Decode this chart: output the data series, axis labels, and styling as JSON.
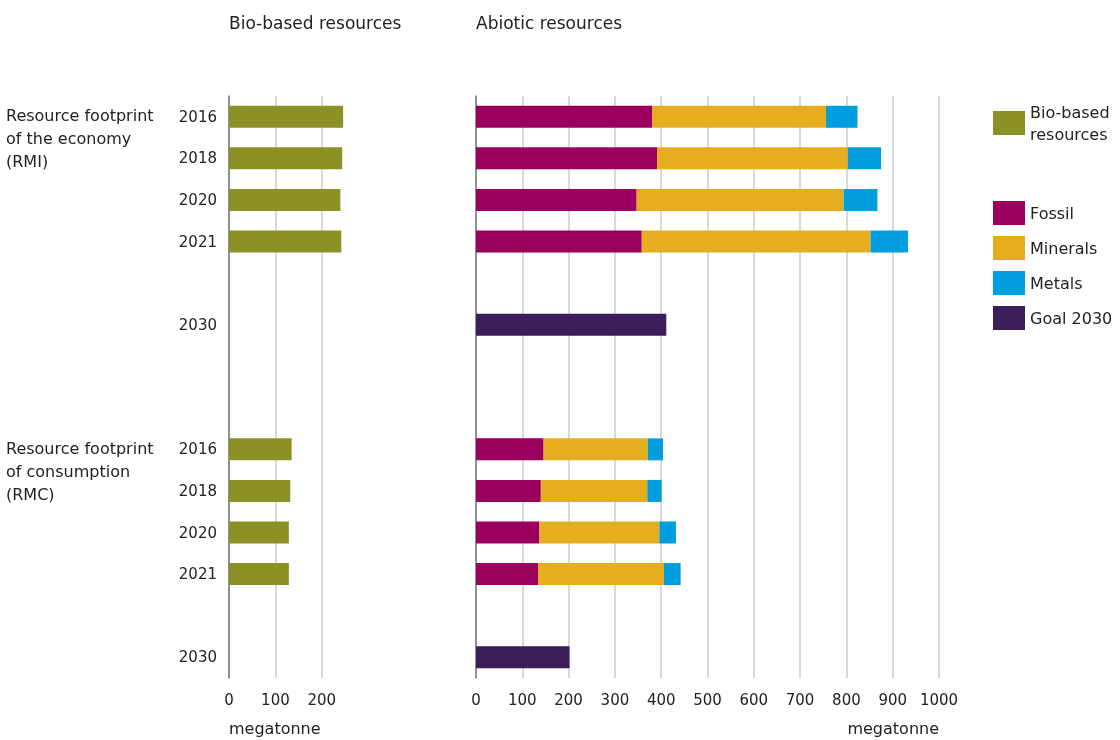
{
  "chart_data": [
    {
      "type": "bar",
      "orientation": "horizontal",
      "title": "Bio-based resources",
      "xlabel": "megatonne",
      "categories": [
        "2016",
        "2018",
        "2020",
        "2021",
        null,
        "2030",
        null,
        null,
        "2016",
        "2018",
        "2020",
        "2021",
        null,
        "2030"
      ],
      "series": [
        {
          "name": "Bio-based resources",
          "color": "#8b9124",
          "values": [
            246,
            244,
            240,
            242,
            null,
            null,
            null,
            null,
            135,
            132,
            129,
            129,
            null,
            null
          ]
        }
      ],
      "xlim": [
        0,
        250
      ],
      "xticks": [
        0,
        100,
        200
      ],
      "grid": "x",
      "legend": "top right",
      "annotations": [
        "Resource footprint of the economy (RMI)",
        "Resource footprint of consumption (RMC)"
      ]
    },
    {
      "type": "bar",
      "orientation": "horizontal",
      "stacked": true,
      "title": "Abiotic resources",
      "xlabel": "megatonne",
      "categories": [
        "2016",
        "2018",
        "2020",
        "2021",
        null,
        "2030",
        null,
        null,
        "2016",
        "2018",
        "2020",
        "2021",
        null,
        "2030"
      ],
      "series": [
        {
          "name": "Fossil",
          "color": "#9b005e",
          "values": [
            381,
            391,
            347,
            358,
            null,
            null,
            null,
            null,
            146,
            140,
            137,
            134,
            null,
            null
          ]
        },
        {
          "name": "Minerals",
          "color": "#e6ad1f",
          "values": [
            375,
            412,
            447,
            494,
            null,
            null,
            null,
            null,
            225,
            230,
            259,
            272,
            null,
            null
          ]
        },
        {
          "name": "Metals",
          "color": "#009ddf",
          "values": [
            68,
            72,
            73,
            81,
            null,
            null,
            null,
            null,
            33,
            31,
            36,
            36,
            null,
            null
          ]
        },
        {
          "name": "Goal 2030",
          "color": "#3d1e5b",
          "values": [
            null,
            null,
            null,
            null,
            null,
            411,
            null,
            null,
            null,
            null,
            null,
            null,
            null,
            202
          ]
        }
      ],
      "xlim": [
        0,
        1000
      ],
      "xticks": [
        0,
        100,
        200,
        300,
        400,
        500,
        600,
        700,
        800,
        900,
        1000
      ],
      "grid": "x",
      "legend": "right",
      "tick_labels": "x"
    }
  ]
}
